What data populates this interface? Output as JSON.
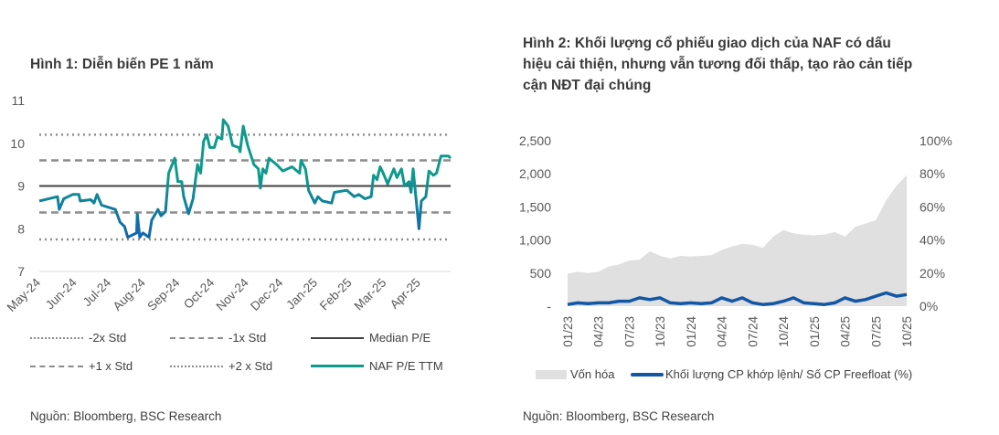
{
  "left": {
    "title": "Hình 1: Diễn biến PE 1 năm",
    "source": "Nguồn: Bloomberg, BSC Research",
    "legend": [
      "-2x Std",
      "-1x Std",
      "Median P/E",
      "+1 x Std",
      "+2 x Std",
      "NAF P/E TTM"
    ]
  },
  "right": {
    "title_lines": [
      "Hình 2: Khối lượng cổ phiếu giao dịch của NAF có dấu",
      "hiệu cải thiện, nhưng vẫn tương đối thấp, tạo rào cản tiếp",
      "cận NĐT đại chúng"
    ],
    "source": "Nguồn: Bloomberg, BSC Research",
    "legend": [
      "Vốn hóa",
      "Khối lượng CP khớp lệnh/ Số CP Freefloat (%)"
    ]
  },
  "colors": {
    "teal": "#0f9a8c",
    "blue": "#1160b2",
    "grey_area": "#e0e0e0",
    "ref": "#8c8c8c",
    "median": "#404040",
    "line2": "#1257a6"
  },
  "chart_data": [
    {
      "type": "line",
      "title": "Hình 1: Diễn biến PE 1 năm",
      "xlabel": "",
      "ylabel": "",
      "ylim": [
        7,
        11
      ],
      "yticks": [
        "7",
        "8",
        "9",
        "10",
        "11"
      ],
      "xlim_months": [
        0,
        11.96
      ],
      "xticks": [
        "May-24",
        "Jun-24",
        "Jul-24",
        "Aug-24",
        "Sep-24",
        "Oct-24",
        "Nov-24",
        "Dec-24",
        "Jan-25",
        "Feb-25",
        "Mar-25",
        "Apr-25"
      ],
      "reference_lines": {
        "minus2": 7.75,
        "minus1": 8.38,
        "median": 9.0,
        "plus1": 9.6,
        "plus2": 10.2
      },
      "series": [
        {
          "name": "NAF P/E TTM",
          "points": [
            [
              0,
              8.65
            ],
            [
              0.53,
              8.75
            ],
            [
              0.58,
              8.45
            ],
            [
              0.71,
              8.7
            ],
            [
              0.97,
              8.8
            ],
            [
              1.15,
              8.8
            ],
            [
              1.19,
              8.65
            ],
            [
              1.5,
              8.68
            ],
            [
              1.59,
              8.6
            ],
            [
              1.68,
              8.8
            ],
            [
              1.81,
              8.55
            ],
            [
              2.21,
              8.45
            ],
            [
              2.35,
              8.15
            ],
            [
              2.48,
              8.05
            ],
            [
              2.57,
              7.8
            ],
            [
              2.83,
              7.9
            ],
            [
              2.85,
              8.35
            ],
            [
              2.92,
              7.8
            ],
            [
              3.01,
              7.9
            ],
            [
              3.19,
              7.8
            ],
            [
              3.27,
              8.2
            ],
            [
              3.45,
              8.45
            ],
            [
              3.54,
              8.3
            ],
            [
              3.67,
              8.4
            ],
            [
              3.76,
              9.3
            ],
            [
              3.94,
              9.65
            ],
            [
              4.03,
              9.1
            ],
            [
              4.14,
              9.1
            ],
            [
              4.2,
              8.75
            ],
            [
              4.34,
              8.35
            ],
            [
              4.47,
              8.7
            ],
            [
              4.6,
              9.5
            ],
            [
              4.69,
              9.3
            ],
            [
              4.78,
              10.05
            ],
            [
              4.87,
              10.2
            ],
            [
              4.96,
              9.9
            ],
            [
              5.09,
              9.9
            ],
            [
              5.18,
              10.15
            ],
            [
              5.31,
              10.1
            ],
            [
              5.35,
              10.55
            ],
            [
              5.49,
              10.4
            ],
            [
              5.62,
              9.95
            ],
            [
              5.8,
              9.9
            ],
            [
              5.84,
              9.8
            ],
            [
              5.93,
              10.4
            ],
            [
              6.06,
              9.95
            ],
            [
              6.24,
              9.5
            ],
            [
              6.37,
              9.4
            ],
            [
              6.43,
              8.95
            ],
            [
              6.5,
              9.4
            ],
            [
              6.59,
              9.3
            ],
            [
              6.68,
              9.65
            ],
            [
              6.9,
              9.5
            ],
            [
              7.08,
              9.35
            ],
            [
              7.35,
              9.45
            ],
            [
              7.57,
              9.3
            ],
            [
              7.61,
              9.6
            ],
            [
              7.74,
              9.4
            ],
            [
              7.83,
              8.9
            ],
            [
              8.01,
              8.6
            ],
            [
              8.1,
              8.75
            ],
            [
              8.23,
              8.65
            ],
            [
              8.5,
              8.6
            ],
            [
              8.58,
              8.85
            ],
            [
              8.94,
              8.9
            ],
            [
              9.16,
              8.75
            ],
            [
              9.29,
              8.8
            ],
            [
              9.47,
              8.7
            ],
            [
              9.65,
              8.75
            ],
            [
              9.72,
              9.25
            ],
            [
              9.82,
              9.15
            ],
            [
              9.91,
              9.45
            ],
            [
              10.0,
              9.3
            ],
            [
              10.13,
              9.05
            ],
            [
              10.31,
              9.4
            ],
            [
              10.4,
              9.2
            ],
            [
              10.53,
              9.4
            ],
            [
              10.62,
              9.0
            ],
            [
              10.75,
              9.1
            ],
            [
              10.81,
              8.85
            ],
            [
              10.87,
              9.4
            ],
            [
              11.04,
              8.0
            ],
            [
              11.11,
              8.65
            ],
            [
              11.24,
              8.75
            ],
            [
              11.33,
              9.35
            ],
            [
              11.46,
              9.25
            ],
            [
              11.55,
              9.3
            ],
            [
              11.68,
              9.7
            ],
            [
              11.9,
              9.7
            ],
            [
              11.96,
              9.65
            ]
          ]
        }
      ]
    },
    {
      "type": "area",
      "title": "Khối lượng cổ phiếu giao dịch của NAF",
      "ylim_left": [
        0,
        2500
      ],
      "ylim_right": [
        0,
        100
      ],
      "yticks_left": [
        "-",
        "500",
        "1,000",
        "1,500",
        "2,000",
        "2,500"
      ],
      "yticks_right": [
        "0%",
        "20%",
        "40%",
        "60%",
        "80%",
        "100%"
      ],
      "xticks": [
        "01/23",
        "04/23",
        "07/23",
        "10/23",
        "01/24",
        "04/24",
        "07/24",
        "10/24",
        "01/25",
        "04/25",
        "07/25",
        "10/25"
      ],
      "series": [
        {
          "name": "Vốn hóa",
          "axis": "left",
          "monthly_values": [
            490,
            520,
            500,
            520,
            600,
            630,
            690,
            700,
            830,
            760,
            720,
            760,
            750,
            760,
            770,
            850,
            900,
            940,
            930,
            880,
            1050,
            1150,
            1100,
            1080,
            1070,
            1080,
            1120,
            1050,
            1200,
            1250,
            1300,
            1600,
            1820,
            1980
          ]
        },
        {
          "name": "Khối lượng CP khớp lệnh/ Số CP Freefloat (%)",
          "axis": "right",
          "monthly_values": [
            1,
            2,
            1.5,
            2,
            2,
            3,
            3,
            5,
            4,
            5,
            2,
            1.5,
            2,
            1.5,
            2,
            5,
            3,
            5,
            2,
            1,
            1.5,
            3,
            5,
            2,
            1.5,
            1,
            2,
            5,
            3,
            4,
            6,
            8,
            6,
            7
          ]
        }
      ]
    }
  ]
}
